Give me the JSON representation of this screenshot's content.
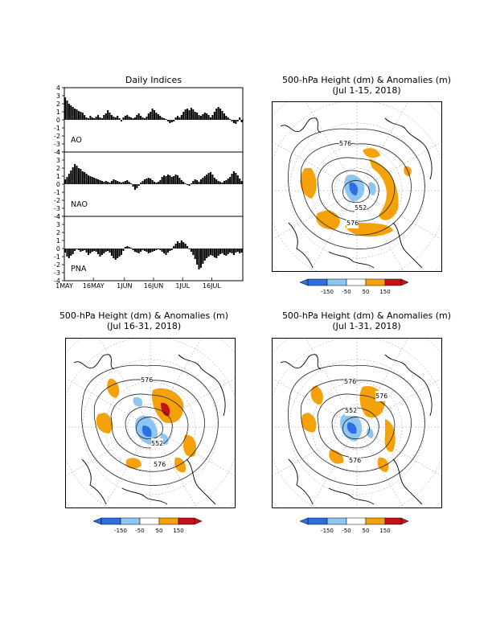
{
  "indices_panel": {
    "title": "Daily Indices",
    "x_ticks": [
      "1MAY",
      "16MAY",
      "1JUN",
      "16JUN",
      "1JUL",
      "16JUL"
    ],
    "y_ticks": [
      "4",
      "3",
      "2",
      "1",
      "0",
      "-1",
      "-2",
      "-3",
      "-4"
    ]
  },
  "maps": [
    {
      "title": "500-hPa Height (dm) & Anomalies (m)",
      "subtitle": "(Jul 1-15, 2018)",
      "contour_labels": [
        "576",
        "552",
        "576"
      ]
    },
    {
      "title": "500-hPa Height (dm) & Anomalies (m)",
      "subtitle": "(Jul 16-31, 2018)",
      "contour_labels": [
        "576",
        "552",
        "576"
      ]
    },
    {
      "title": "500-hPa Height (dm) & Anomalies (m)",
      "subtitle": "(Jul 1-31, 2018)",
      "contour_labels": [
        "576",
        "576",
        "552",
        "576"
      ]
    }
  ],
  "colorbar": {
    "labels": [
      "-150",
      "-50",
      "50",
      "150"
    ],
    "colors": {
      "dark_blue": "#2d6fe0",
      "light_blue": "#8ec6f2",
      "white": "#ffffff",
      "orange": "#f5a20a",
      "red": "#c8101a"
    }
  },
  "chart_data": [
    {
      "type": "bar",
      "name": "AO",
      "x_start": "1MAY",
      "x_end": "31JUL",
      "ylim": [
        -4,
        4
      ],
      "values": [
        2.8,
        2.4,
        2.0,
        1.8,
        1.6,
        1.4,
        1.3,
        1.1,
        1.0,
        0.9,
        0.6,
        0.3,
        0.2,
        0.5,
        0.3,
        0.2,
        0.4,
        0.6,
        0.3,
        0.2,
        0.6,
        0.8,
        1.2,
        0.9,
        0.6,
        0.4,
        0.3,
        0.5,
        0.2,
        -0.2,
        0.3,
        0.5,
        0.6,
        0.4,
        0.3,
        0.2,
        0.3,
        0.6,
        0.8,
        0.5,
        0.3,
        0.2,
        0.4,
        0.8,
        1.0,
        1.4,
        1.2,
        0.9,
        0.7,
        0.5,
        0.3,
        0.2,
        0.1,
        -0.2,
        -0.4,
        -0.3,
        -0.2,
        0.3,
        0.5,
        0.3,
        0.6,
        1.0,
        1.3,
        1.4,
        1.2,
        1.5,
        1.3,
        1.0,
        0.9,
        0.6,
        0.5,
        0.7,
        0.9,
        0.8,
        0.6,
        0.3,
        0.6,
        1.0,
        1.4,
        1.6,
        1.4,
        1.1,
        0.8,
        0.5,
        0.3,
        0.1,
        -0.2,
        -0.4,
        -0.5,
        -0.2,
        0.3,
        -0.3
      ]
    },
    {
      "type": "bar",
      "name": "NAO",
      "x_start": "1MAY",
      "x_end": "31JUL",
      "ylim": [
        -4,
        4
      ],
      "values": [
        0.6,
        0.9,
        1.3,
        1.7,
        2.1,
        2.5,
        2.3,
        2.0,
        1.9,
        1.6,
        1.5,
        1.3,
        1.1,
        1.0,
        0.9,
        0.8,
        0.7,
        0.6,
        0.5,
        0.4,
        0.3,
        0.4,
        0.3,
        0.2,
        0.4,
        0.6,
        0.5,
        0.4,
        0.3,
        0.2,
        0.3,
        0.4,
        0.5,
        0.3,
        0.1,
        -0.3,
        -0.7,
        -0.5,
        -0.2,
        0.2,
        0.4,
        0.6,
        0.7,
        0.8,
        0.7,
        0.5,
        0.3,
        0.2,
        0.3,
        0.5,
        0.9,
        1.1,
        1.0,
        1.2,
        1.1,
        0.9,
        1.0,
        1.2,
        1.1,
        0.8,
        0.5,
        0.3,
        0.1,
        -0.1,
        -0.2,
        0.1,
        0.4,
        0.6,
        0.5,
        0.3,
        0.6,
        0.8,
        1.0,
        1.2,
        1.4,
        1.5,
        1.2,
        0.8,
        0.6,
        0.4,
        0.3,
        0.2,
        0.4,
        0.5,
        0.7,
        0.9,
        1.3,
        1.6,
        1.4,
        1.1,
        0.7,
        0.4
      ]
    },
    {
      "type": "bar",
      "name": "PNA",
      "x_start": "1MAY",
      "x_end": "31JUL",
      "ylim": [
        -4,
        4
      ],
      "values": [
        -0.5,
        -1.0,
        -1.2,
        -0.9,
        -0.7,
        -0.3,
        -0.1,
        -0.2,
        -0.4,
        -0.3,
        -0.2,
        -0.5,
        -0.8,
        -0.6,
        -0.4,
        -0.3,
        -0.4,
        -0.7,
        -1.0,
        -0.8,
        -0.6,
        -0.4,
        -0.3,
        -0.5,
        -0.9,
        -1.2,
        -1.4,
        -1.2,
        -1.0,
        -0.8,
        -0.3,
        0.2,
        0.3,
        0.2,
        0.1,
        -0.2,
        -0.4,
        -0.5,
        -0.6,
        -0.4,
        -0.2,
        -0.3,
        -0.4,
        -0.6,
        -0.5,
        -0.4,
        -0.3,
        -0.2,
        -0.1,
        -0.2,
        -0.4,
        -0.6,
        -0.8,
        -0.5,
        -0.3,
        -0.2,
        0.3,
        0.6,
        0.9,
        0.7,
        1.0,
        0.8,
        0.6,
        0.3,
        -0.1,
        -0.4,
        -0.8,
        -1.3,
        -2.0,
        -2.6,
        -2.4,
        -1.9,
        -1.5,
        -1.2,
        -1.0,
        -0.8,
        -0.9,
        -1.1,
        -1.2,
        -0.9,
        -0.7,
        -0.6,
        -0.8,
        -0.9,
        -0.7,
        -0.5,
        -0.6,
        -0.8,
        -0.5,
        -0.4,
        -0.6,
        -0.5
      ]
    }
  ]
}
